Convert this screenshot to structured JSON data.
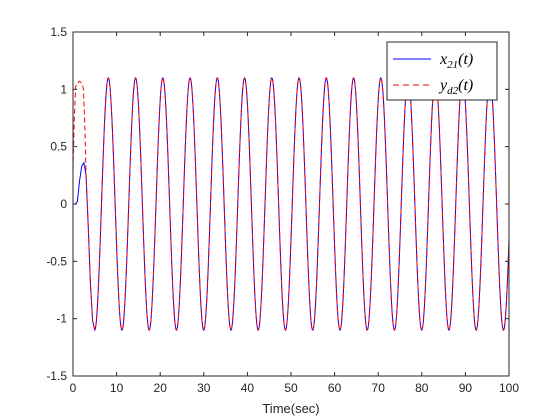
{
  "chart_data": {
    "type": "line",
    "title": "",
    "xlabel": "Time(sec)",
    "ylabel": "",
    "xlim": [
      0,
      100
    ],
    "ylim": [
      -1.5,
      1.5
    ],
    "xticks": [
      0,
      10,
      20,
      30,
      40,
      50,
      60,
      70,
      80,
      90,
      100
    ],
    "xtick_labels": [
      "0",
      "10",
      "20",
      "30",
      "40",
      "50",
      "60",
      "70",
      "80",
      "90",
      "100"
    ],
    "yticks": [
      -1.5,
      -1,
      -0.5,
      0,
      0.5,
      1,
      1.5
    ],
    "ytick_labels": [
      "-1.5",
      "-1",
      "-0.5",
      "0",
      "0.5",
      "1",
      "1.5"
    ],
    "grid": false,
    "legend_position": "top-right",
    "series": [
      {
        "name": "x21(t)",
        "legend_main": "x",
        "legend_sub": "21",
        "legend_tail": "(t)",
        "color": "#0000ff",
        "style": "solid",
        "points": [
          [
            0,
            0
          ],
          [
            0.5,
            0
          ],
          [
            1.0,
            0.02
          ],
          [
            1.5,
            0.2
          ],
          [
            2.0,
            0.33
          ],
          [
            2.5,
            0.36
          ],
          [
            3.0,
            0.25
          ],
          [
            3.5,
            -0.2
          ],
          [
            4.0,
            -0.7
          ],
          [
            4.5,
            -1.02
          ],
          [
            5.0,
            -1.1
          ]
        ],
        "steady_amplitude": 1.1,
        "steady_period": 6.25,
        "steady_phase_peak_x": 8.1
      },
      {
        "name": "yd2(t)",
        "legend_main": "y",
        "legend_sub": "d2",
        "legend_tail": "(t)",
        "color": "#ff0000",
        "style": "dashed",
        "points": [
          [
            0,
            0.3
          ],
          [
            0.3,
            0.75
          ],
          [
            0.6,
            1.02
          ],
          [
            0.9,
            1.06
          ],
          [
            1.2,
            1.06
          ],
          [
            1.5,
            1.07
          ],
          [
            1.8,
            1.06
          ],
          [
            2.1,
            1.05
          ],
          [
            2.4,
            1.0
          ],
          [
            2.7,
            0.7
          ],
          [
            3.0,
            0.25
          ],
          [
            3.5,
            -0.2
          ],
          [
            4.0,
            -0.7
          ],
          [
            4.5,
            -1.02
          ],
          [
            5.0,
            -1.1
          ]
        ],
        "steady_amplitude": 1.1,
        "steady_period": 6.25,
        "steady_phase_peak_x": 8.1
      }
    ]
  }
}
